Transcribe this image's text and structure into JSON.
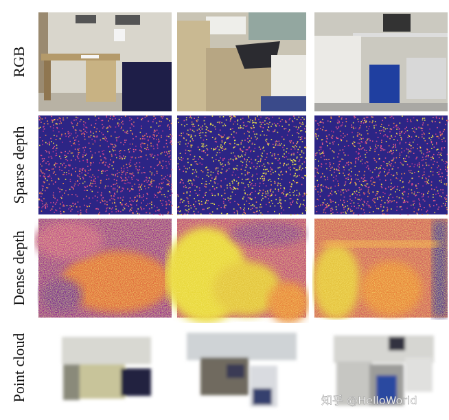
{
  "rows": [
    "RGB",
    "Sparse depth",
    "Dense depth",
    "Point cloud"
  ],
  "watermark": "知乎 @HelloWorld"
}
